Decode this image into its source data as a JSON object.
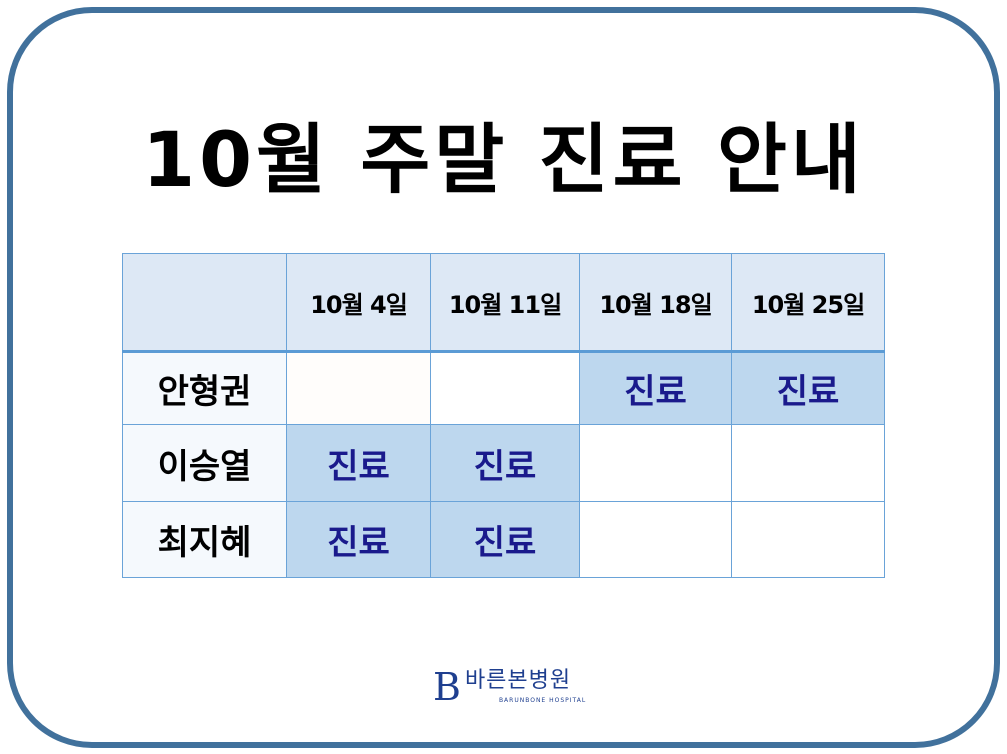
{
  "title": "10월 주말 진료 안내",
  "schedule": {
    "dates": [
      "10월 4일",
      "10월 11일",
      "10월 18일",
      "10월 25일"
    ],
    "doctors": [
      {
        "name": "안형권",
        "cells": [
          "",
          "",
          "진료",
          "진료"
        ]
      },
      {
        "name": "이승열",
        "cells": [
          "진료",
          "진료",
          "",
          ""
        ]
      },
      {
        "name": "최지혜",
        "cells": [
          "진료",
          "진료",
          "",
          ""
        ]
      }
    ]
  },
  "logo": {
    "korean": "바른본병원",
    "english": "BARUNBONE HOSPITAL",
    "mark": "B"
  },
  "colors": {
    "frame": "#41719c",
    "header": "#dde8f5",
    "on": "#bdd7ee",
    "on_text": "#1a1a8c"
  }
}
